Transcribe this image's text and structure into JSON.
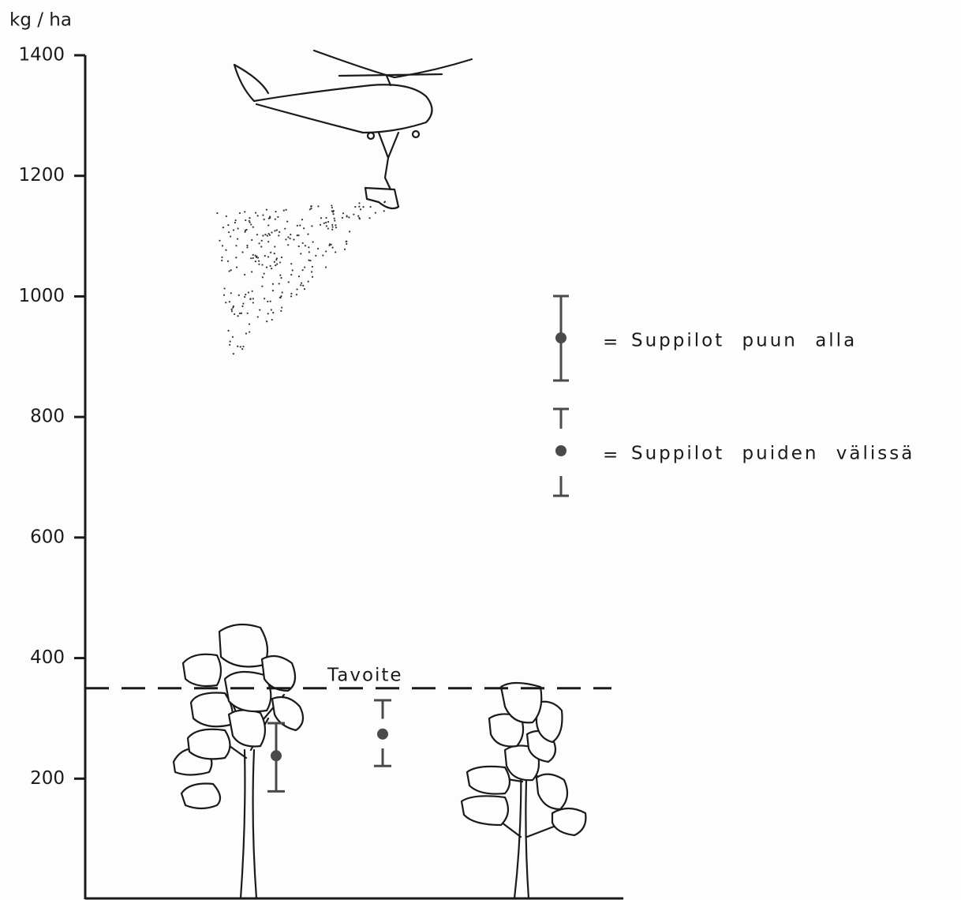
{
  "chart_data": {
    "type": "errorbar",
    "y_label": "kg / ha",
    "ylim": [
      0,
      1400
    ],
    "yticks": [
      200,
      400,
      600,
      800,
      1000,
      1200,
      1400
    ],
    "target": {
      "label": "Tavoite",
      "value": 350
    },
    "legend_separator": "=",
    "series": [
      {
        "name": "Suppilot puun alla",
        "color": "#4a4a4a",
        "style": "full",
        "values": [
          238
        ],
        "low": [
          179
        ],
        "high": [
          292
        ]
      },
      {
        "name": "Suppilot puiden välissä",
        "color": "#4a4a4a",
        "style": "split",
        "values": [
          274
        ],
        "low": [
          221
        ],
        "high": [
          330
        ]
      }
    ]
  }
}
